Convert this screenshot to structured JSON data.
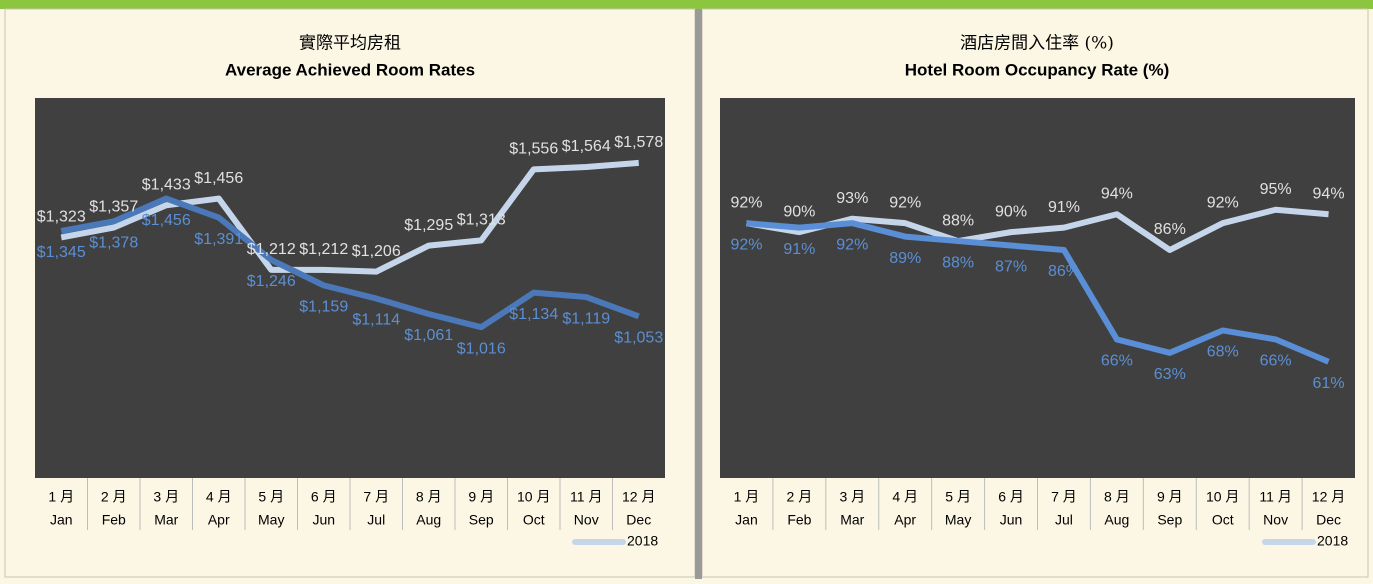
{
  "chart_data": [
    {
      "type": "line",
      "title_zh": "實際平均房租",
      "title": "Average Achieved Room Rates",
      "categories_zh": [
        "1 月",
        "2 月",
        "3 月",
        "4 月",
        "5 月",
        "6 月",
        "7 月",
        "8 月",
        "9 月",
        "10 月",
        "11 月",
        "12 月"
      ],
      "categories": [
        "Jan",
        "Feb",
        "Mar",
        "Apr",
        "May",
        "Jun",
        "Jul",
        "Aug",
        "Sep",
        "Oct",
        "Nov",
        "Dec"
      ],
      "ylim": [
        500,
        1800
      ],
      "legend": "bottom-right",
      "series": [
        {
          "name": "2018",
          "color": "#c6d6ea",
          "label_color": "#e0e0e0",
          "values": [
            1323,
            1357,
            1433,
            1456,
            1212,
            1212,
            1206,
            1295,
            1313,
            1556,
            1564,
            1578
          ],
          "value_labels": [
            "$1,323",
            "$1,357",
            "$1,433",
            "$1,456",
            "$1,212",
            "$1,212",
            "$1,206",
            "$1,295",
            "$1,313",
            "$1,556",
            "$1,564",
            "$1,578"
          ]
        },
        {
          "color": "#4a78b8",
          "label_color": "#5b8fd4",
          "values": [
            1345,
            1378,
            1456,
            1391,
            1246,
            1159,
            1114,
            1061,
            1016,
            1134,
            1119,
            1053
          ],
          "value_labels": [
            "$1,345",
            "$1,378",
            "$1,456",
            "$1,391",
            "$1,246",
            "$1,159",
            "$1,114",
            "$1,061",
            "$1,016",
            "$1,134",
            "$1,119",
            "$1,053"
          ]
        }
      ]
    },
    {
      "type": "line",
      "title_zh": "酒店房間入住率 (%)",
      "title": "Hotel Room Occupancy Rate (%)",
      "categories_zh": [
        "1 月",
        "2 月",
        "3 月",
        "4 月",
        "5 月",
        "6 月",
        "7 月",
        "8 月",
        "9 月",
        "10 月",
        "11 月",
        "12 月"
      ],
      "categories": [
        "Jan",
        "Feb",
        "Mar",
        "Apr",
        "May",
        "Jun",
        "Jul",
        "Aug",
        "Sep",
        "Oct",
        "Nov",
        "Dec"
      ],
      "ylim": [
        35,
        120
      ],
      "legend": "bottom-right",
      "series": [
        {
          "name": "2018",
          "color": "#c6d6ea",
          "label_color": "#e0e0e0",
          "values": [
            92,
            90,
            93,
            92,
            88,
            90,
            91,
            94,
            86,
            92,
            95,
            94
          ],
          "value_labels": [
            "92%",
            "90%",
            "93%",
            "92%",
            "88%",
            "90%",
            "91%",
            "94%",
            "86%",
            "92%",
            "95%",
            "94%"
          ]
        },
        {
          "color": "#5a8ed6",
          "label_color": "#5b8fd4",
          "values": [
            92,
            91,
            92,
            89,
            88,
            87,
            86,
            66,
            63,
            68,
            66,
            61
          ],
          "value_labels": [
            "92%",
            "91%",
            "92%",
            "89%",
            "88%",
            "87%",
            "86%",
            "66%",
            "63%",
            "68%",
            "66%",
            "61%"
          ]
        }
      ]
    }
  ]
}
